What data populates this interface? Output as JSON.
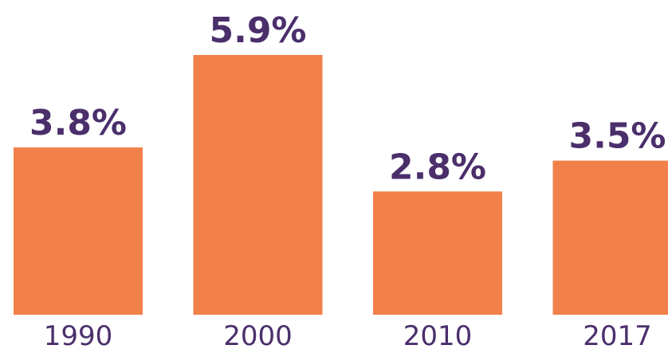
{
  "chart_data": {
    "type": "bar",
    "categories": [
      "1990",
      "2000",
      "2010",
      "2017"
    ],
    "values": [
      3.8,
      5.9,
      2.8,
      3.5
    ],
    "data_labels": [
      "3.8%",
      "5.9%",
      "2.8%",
      "3.5%"
    ],
    "ylim": [
      0,
      5.9
    ],
    "grid": false,
    "colors": {
      "bar": "#f2804a",
      "text": "#4a2f6b"
    }
  }
}
